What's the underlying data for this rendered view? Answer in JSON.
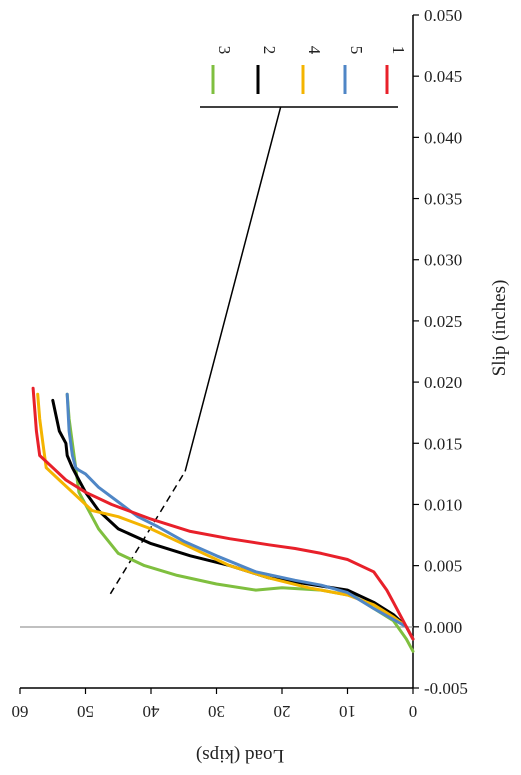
{
  "chart_data": {
    "type": "line",
    "title": "",
    "xlabel": "Load (kips)",
    "ylabel": "Slip (inches)",
    "xlim": [
      0,
      60
    ],
    "ylim": [
      -0.005,
      0.05
    ],
    "x_ticks": [
      "0",
      "10",
      "20",
      "30",
      "40",
      "50",
      "60"
    ],
    "y_ticks": [
      "-0.005",
      "0.000",
      "0.005",
      "0.010",
      "0.015",
      "0.020",
      "0.025",
      "0.030",
      "0.035",
      "0.040",
      "0.045",
      "0.050"
    ],
    "grid": false,
    "legend": "top",
    "series": [
      {
        "name": "3",
        "color": "#7fbf3f",
        "points": [
          [
            0,
            -0.002
          ],
          [
            1,
            -0.001
          ],
          [
            3,
            0.0005
          ],
          [
            6,
            0.0015
          ],
          [
            9,
            0.0025
          ],
          [
            14,
            0.003
          ],
          [
            20,
            0.0032
          ],
          [
            24,
            0.003
          ],
          [
            30,
            0.0035
          ],
          [
            36,
            0.0042
          ],
          [
            41,
            0.005
          ],
          [
            45,
            0.006
          ],
          [
            48,
            0.008
          ],
          [
            50,
            0.01
          ],
          [
            51,
            0.011
          ],
          [
            51.5,
            0.013
          ],
          [
            52,
            0.015
          ],
          [
            52.5,
            0.017
          ],
          [
            52.8,
            0.019
          ]
        ]
      },
      {
        "name": "2",
        "color": "#000000",
        "points": [
          [
            0,
            -0.001
          ],
          [
            1,
            0
          ],
          [
            3,
            0.001
          ],
          [
            6,
            0.002
          ],
          [
            10,
            0.003
          ],
          [
            16,
            0.0035
          ],
          [
            22,
            0.004
          ],
          [
            28,
            0.005
          ],
          [
            34,
            0.0058
          ],
          [
            40,
            0.0068
          ],
          [
            45,
            0.008
          ],
          [
            48,
            0.0095
          ],
          [
            50,
            0.011
          ],
          [
            51,
            0.012
          ],
          [
            52,
            0.013
          ],
          [
            52.8,
            0.014
          ],
          [
            53,
            0.015
          ],
          [
            54,
            0.016
          ],
          [
            55,
            0.0185
          ]
        ]
      },
      {
        "name": "4",
        "color": "#f4b400",
        "points": [
          [
            0,
            -0.001
          ],
          [
            1,
            0
          ],
          [
            3,
            0.0008
          ],
          [
            6,
            0.0018
          ],
          [
            10,
            0.0026
          ],
          [
            16,
            0.0032
          ],
          [
            22,
            0.004
          ],
          [
            28,
            0.005
          ],
          [
            34,
            0.0065
          ],
          [
            40,
            0.008
          ],
          [
            45,
            0.009
          ],
          [
            49,
            0.0095
          ],
          [
            52,
            0.011
          ],
          [
            54,
            0.012
          ],
          [
            56,
            0.013
          ],
          [
            56.5,
            0.015
          ],
          [
            57,
            0.017
          ],
          [
            57.3,
            0.019
          ]
        ]
      },
      {
        "name": "5",
        "color": "#4f86c6",
        "points": [
          [
            0,
            -0.001
          ],
          [
            1,
            0
          ],
          [
            3,
            0.0006
          ],
          [
            6,
            0.0015
          ],
          [
            10,
            0.0028
          ],
          [
            14,
            0.0034
          ],
          [
            18,
            0.0038
          ],
          [
            24,
            0.0045
          ],
          [
            30,
            0.0058
          ],
          [
            35,
            0.007
          ],
          [
            39,
            0.0082
          ],
          [
            42,
            0.009
          ],
          [
            45,
            0.0102
          ],
          [
            48,
            0.0114
          ],
          [
            50,
            0.0125
          ],
          [
            51,
            0.0128
          ],
          [
            51.5,
            0.013
          ],
          [
            52,
            0.014
          ],
          [
            52.5,
            0.016
          ],
          [
            52.8,
            0.019
          ]
        ]
      },
      {
        "name": "1",
        "color": "#e8202a",
        "points": [
          [
            0,
            -0.001
          ],
          [
            1,
            0
          ],
          [
            2,
            0.001
          ],
          [
            3,
            0.002
          ],
          [
            4,
            0.003
          ],
          [
            6,
            0.0045
          ],
          [
            10,
            0.0055
          ],
          [
            14,
            0.006
          ],
          [
            18,
            0.0064
          ],
          [
            22,
            0.0067
          ],
          [
            28,
            0.0072
          ],
          [
            34,
            0.0078
          ],
          [
            40,
            0.0088
          ],
          [
            46,
            0.01
          ],
          [
            50,
            0.011
          ],
          [
            53,
            0.012
          ],
          [
            55,
            0.013
          ],
          [
            57,
            0.014
          ],
          [
            57.5,
            0.016
          ],
          [
            58,
            0.0195
          ]
        ]
      }
    ],
    "reference_lines": [
      {
        "style": "solid",
        "points": [
          [
            34.8,
            0.0127
          ],
          [
            20.2,
            0.0425
          ]
        ]
      },
      {
        "style": "dashed",
        "points": [
          [
            46.2,
            0.0027
          ],
          [
            34.8,
            0.0127
          ]
        ]
      }
    ],
    "legend_leader": {
      "from": [
        20.2,
        0.0425
      ],
      "to": [
        20.2,
        0.0425
      ]
    }
  }
}
